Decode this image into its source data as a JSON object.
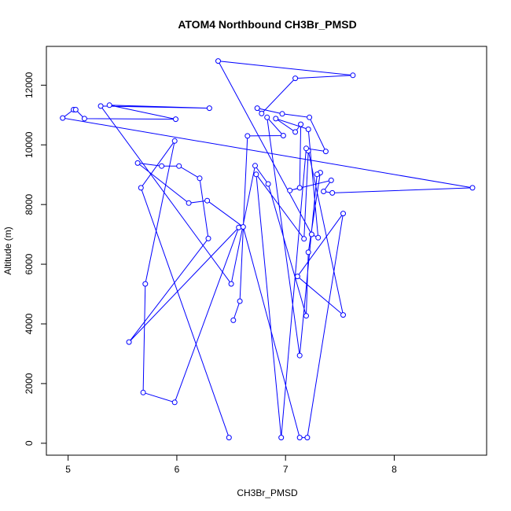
{
  "chart_data": {
    "type": "line",
    "title": "ATOM4 Northbound CH3Br_PMSD",
    "xlabel": "CH3Br_PMSD",
    "ylabel": "Altitude (m)",
    "xlim": [
      4.8,
      8.85
    ],
    "ylim": [
      -400,
      13300
    ],
    "xticks": [
      5,
      6,
      7,
      8
    ],
    "yticks": [
      0,
      2000,
      4000,
      6000,
      8000,
      10000,
      12000
    ],
    "line_color": "#0000ff",
    "marker": "open-circle",
    "points": [
      [
        6.48,
        190
      ],
      [
        5.67,
        8560
      ],
      [
        5.98,
        10130
      ],
      [
        5.71,
        5340
      ],
      [
        5.69,
        1700
      ],
      [
        5.98,
        1370
      ],
      [
        6.57,
        7230
      ],
      [
        5.56,
        3390
      ],
      [
        6.29,
        6860
      ],
      [
        6.21,
        8880
      ],
      [
        6.02,
        9290
      ],
      [
        5.86,
        9290
      ],
      [
        5.64,
        9390
      ],
      [
        6.11,
        8050
      ],
      [
        6.28,
        8130
      ],
      [
        6.61,
        7250
      ],
      [
        7.13,
        190
      ],
      [
        7.2,
        190
      ],
      [
        7.53,
        7700
      ],
      [
        7.11,
        5590
      ],
      [
        7.53,
        4300
      ],
      [
        7.21,
        9800
      ],
      [
        7.17,
        6850
      ],
      [
        6.73,
        9010
      ],
      [
        6.96,
        190
      ],
      [
        7.19,
        9880
      ],
      [
        7.37,
        9780
      ],
      [
        7.22,
        10920
      ],
      [
        6.97,
        11040
      ],
      [
        6.74,
        11230
      ],
      [
        6.78,
        11050
      ],
      [
        7.09,
        12230
      ],
      [
        7.62,
        12330
      ],
      [
        6.38,
        12810
      ],
      [
        7.24,
        7000
      ],
      [
        7.3,
        6890
      ],
      [
        7.21,
        10520
      ],
      [
        6.91,
        10880
      ],
      [
        7.09,
        10430
      ],
      [
        7.14,
        10690
      ],
      [
        7.13,
        8560
      ],
      [
        7.04,
        8470
      ],
      [
        7.42,
        8810
      ],
      [
        7.35,
        8440
      ],
      [
        7.43,
        8390
      ],
      [
        8.72,
        8560
      ],
      [
        4.95,
        10900
      ],
      [
        5.05,
        11180
      ],
      [
        5.07,
        11180
      ],
      [
        5.15,
        10880
      ],
      [
        5.99,
        10860
      ],
      [
        5.38,
        11330
      ],
      [
        6.3,
        11230
      ],
      [
        5.3,
        11300
      ],
      [
        6.5,
        5340
      ],
      [
        6.72,
        9300
      ],
      [
        6.84,
        8690
      ],
      [
        7.19,
        4270
      ],
      [
        7.21,
        6400
      ],
      [
        7.32,
        9070
      ],
      [
        7.29,
        9010
      ],
      [
        7.13,
        2940
      ],
      [
        6.83,
        10920
      ],
      [
        6.98,
        10310
      ],
      [
        6.65,
        10300
      ],
      [
        6.58,
        4760
      ],
      [
        6.52,
        4120
      ]
    ]
  }
}
